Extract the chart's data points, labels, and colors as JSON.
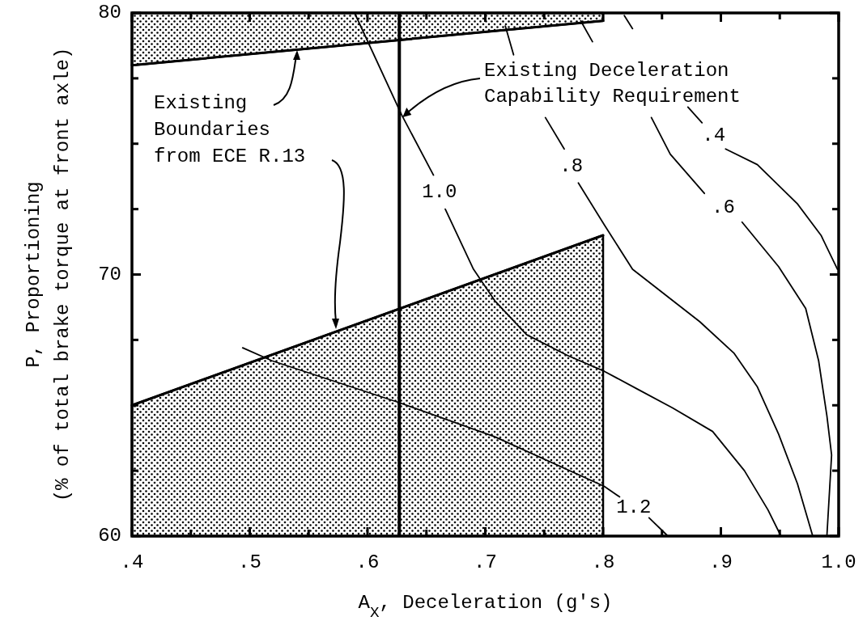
{
  "chart_data": {
    "type": "line",
    "xlabel": "A$_{X}$, Deceleration (g's)",
    "ylabel": "P, Proportioning\n(% of total brake torque at front axle)",
    "xlim": [
      0.4,
      1.0
    ],
    "ylim": [
      60,
      80
    ],
    "xticks": [
      {
        "value": 0.4,
        "label": ".4"
      },
      {
        "value": 0.45,
        "label": null
      },
      {
        "value": 0.5,
        "label": ".5"
      },
      {
        "value": 0.55,
        "label": null
      },
      {
        "value": 0.6,
        "label": ".6"
      },
      {
        "value": 0.65,
        "label": null
      },
      {
        "value": 0.7,
        "label": ".7"
      },
      {
        "value": 0.75,
        "label": null
      },
      {
        "value": 0.8,
        "label": ".8"
      },
      {
        "value": 0.85,
        "label": null
      },
      {
        "value": 0.9,
        "label": ".9"
      },
      {
        "value": 0.95,
        "label": null
      },
      {
        "value": 1.0,
        "label": "1.0"
      }
    ],
    "yticks": [
      60,
      {
        "value": 62.5,
        "label": null
      },
      {
        "value": 65,
        "label": null
      },
      {
        "value": 67.5,
        "label": null
      },
      70,
      {
        "value": 72.5,
        "label": null
      },
      {
        "value": 75,
        "label": null
      },
      {
        "value": 77.5,
        "label": null
      },
      80
    ],
    "series": [
      {
        "type": "line",
        "color": "#000000",
        "x": [
          0.4,
          0.8
        ],
        "values": [
          78.0,
          79.7
        ],
        "lower": [
          78.0,
          79.7
        ],
        "upper": [
          80,
          80
        ]
      },
      {
        "type": "line",
        "color": "#000000",
        "x": [
          0.4,
          0.8
        ],
        "values": [
          65.0,
          71.5
        ],
        "lower": [
          60,
          60
        ],
        "upper": [
          65.0,
          71.5
        ]
      },
      {
        "name": "1.0",
        "color": "#000000",
        "x": [
          0.589,
          0.629,
          0.656,
          0.661,
          0.666,
          0.69,
          0.708,
          0.735,
          0.77,
          0.801,
          0.83,
          0.859,
          0.893,
          0.92,
          0.94,
          0.951
        ],
        "values": [
          80,
          76.1,
          73.8,
          null,
          72.5,
          70.2,
          69.0,
          67.7,
          66.9,
          66.3,
          65.6,
          64.9,
          64.0,
          62.5,
          61.0,
          60.0
        ]
      },
      {
        "name": ".8",
        "color": "#000000",
        "x": [
          0.717,
          0.724,
          0.74,
          0.751,
          0.767,
          0.773,
          0.779,
          0.801,
          0.825,
          0.882,
          0.911,
          0.931,
          0.949,
          0.965,
          0.978
        ],
        "values": [
          79.5,
          78.4,
          null,
          76.0,
          74.8,
          null,
          73.5,
          71.9,
          70.2,
          68.2,
          67.0,
          65.7,
          63.9,
          62.0,
          60.0
        ]
      },
      {
        "name": ".6",
        "color": "#000000",
        "x": [
          0.781,
          0.791,
          0.82,
          0.841,
          0.857,
          0.886,
          0.902,
          0.918,
          0.949,
          0.972,
          0.983,
          0.99,
          0.994,
          0.99
        ],
        "values": [
          79.7,
          78.9,
          null,
          76.0,
          74.6,
          73.1,
          null,
          72.0,
          70.3,
          68.7,
          66.7,
          64.6,
          63.1,
          60.0
        ]
      },
      {
        "name": ".4",
        "color": "#000000",
        "x": [
          0.818,
          0.825,
          0.85,
          0.872,
          0.884,
          0.894,
          0.904,
          0.931,
          0.965,
          0.985,
          0.999
        ],
        "values": [
          79.9,
          79.4,
          null,
          76.4,
          75.8,
          null,
          74.8,
          74.2,
          72.7,
          71.5,
          70.2
        ]
      },
      {
        "name": "1.2",
        "color": "#000000",
        "x": [
          0.494,
          0.519,
          0.627,
          0.708,
          0.801,
          0.814,
          0.826,
          0.839,
          0.855
        ],
        "values": [
          67.2,
          66.7,
          65.1,
          63.8,
          61.9,
          61.5,
          null,
          60.7,
          60.0
        ]
      }
    ],
    "ref_lines": [
      {
        "axis": "x",
        "value": 0.627,
        "label": "Existing Deceleration Capability Requirement",
        "color": "#000000"
      }
    ],
    "annotations": [
      "Existing Boundaries from ECE R.13"
    ]
  }
}
